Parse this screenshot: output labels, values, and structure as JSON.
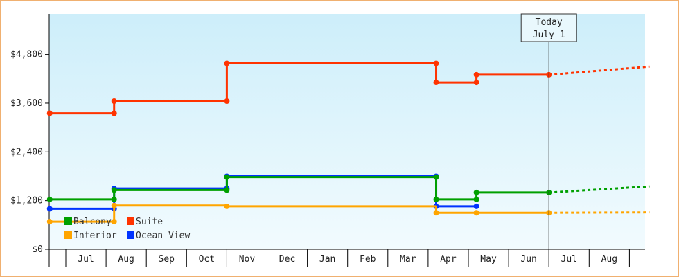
{
  "chart_data": {
    "type": "line",
    "step": true,
    "x_axis": {
      "month_labels": [
        "Jul",
        "Aug",
        "Sep",
        "Oct",
        "Nov",
        "Dec",
        "Jan",
        "Feb",
        "Mar",
        "Apr",
        "May",
        "Jun",
        "Jul",
        "Aug"
      ]
    },
    "y_axis": {
      "ylim": [
        0,
        5800
      ],
      "ticks": [
        0,
        1200,
        2400,
        3600,
        4800
      ],
      "tick_labels": [
        "$0",
        "$1,200",
        "$2,400",
        "$3,600",
        "$4,800"
      ]
    },
    "today_marker": {
      "line1": "Today",
      "line2": "July 1",
      "month_index": 12.0
    },
    "grid": false,
    "legend_position": "bottom-left",
    "series": [
      {
        "name": "Suite",
        "color": "#ff3300",
        "points": [
          [
            -0.4,
            3350
          ],
          [
            1.2,
            3350
          ],
          [
            1.2,
            3650
          ],
          [
            4.0,
            3650
          ],
          [
            4.0,
            4580
          ],
          [
            9.2,
            4580
          ],
          [
            9.2,
            4110
          ],
          [
            10.2,
            4110
          ],
          [
            10.2,
            4300
          ],
          [
            12.0,
            4300
          ]
        ],
        "markers": [
          [
            -0.4,
            3350
          ],
          [
            1.2,
            3350
          ],
          [
            1.2,
            3650
          ],
          [
            4.0,
            3650
          ],
          [
            4.0,
            4580
          ],
          [
            9.2,
            4580
          ],
          [
            9.2,
            4110
          ],
          [
            10.2,
            4110
          ],
          [
            10.2,
            4300
          ],
          [
            12.0,
            4300
          ]
        ],
        "forecast": [
          [
            12.0,
            4300
          ],
          [
            14.5,
            4500
          ]
        ]
      },
      {
        "name": "Ocean View",
        "color": "#0033ff",
        "points": [
          [
            -0.4,
            1000
          ],
          [
            1.2,
            1000
          ],
          [
            1.2,
            1500
          ],
          [
            4.0,
            1500
          ],
          [
            4.0,
            1800
          ],
          [
            9.2,
            1800
          ],
          [
            9.2,
            1060
          ],
          [
            10.2,
            1060
          ]
        ],
        "markers": [
          [
            -0.4,
            1000
          ],
          [
            1.2,
            1000
          ],
          [
            1.2,
            1500
          ],
          [
            4.0,
            1500
          ],
          [
            4.0,
            1800
          ],
          [
            9.2,
            1800
          ],
          [
            9.2,
            1060
          ],
          [
            10.2,
            1060
          ]
        ],
        "forecast": []
      },
      {
        "name": "Balcony",
        "color": "#00a000",
        "points": [
          [
            -0.4,
            1230
          ],
          [
            1.2,
            1230
          ],
          [
            1.2,
            1460
          ],
          [
            4.0,
            1460
          ],
          [
            4.0,
            1780
          ],
          [
            9.2,
            1780
          ],
          [
            9.2,
            1230
          ],
          [
            10.2,
            1230
          ],
          [
            10.2,
            1400
          ],
          [
            12.0,
            1400
          ]
        ],
        "markers": [
          [
            -0.4,
            1230
          ],
          [
            1.2,
            1230
          ],
          [
            1.2,
            1460
          ],
          [
            4.0,
            1460
          ],
          [
            4.0,
            1780
          ],
          [
            9.2,
            1780
          ],
          [
            9.2,
            1230
          ],
          [
            10.2,
            1230
          ],
          [
            10.2,
            1400
          ],
          [
            12.0,
            1400
          ]
        ],
        "forecast": [
          [
            12.0,
            1400
          ],
          [
            14.5,
            1550
          ]
        ]
      },
      {
        "name": "Interior",
        "color": "#ffa500",
        "points": [
          [
            -0.4,
            680
          ],
          [
            1.2,
            680
          ],
          [
            1.2,
            1080
          ],
          [
            4.0,
            1080
          ],
          [
            4.0,
            1060
          ],
          [
            9.2,
            1060
          ],
          [
            9.2,
            900
          ],
          [
            10.2,
            900
          ],
          [
            10.2,
            900
          ],
          [
            12.0,
            900
          ]
        ],
        "markers": [
          [
            -0.4,
            680
          ],
          [
            1.2,
            680
          ],
          [
            1.2,
            1080
          ],
          [
            4.0,
            1060
          ],
          [
            9.2,
            900
          ],
          [
            10.2,
            900
          ],
          [
            12.0,
            900
          ]
        ],
        "forecast": [
          [
            12.0,
            900
          ],
          [
            14.5,
            910
          ]
        ]
      }
    ],
    "legend": [
      {
        "label": "Balcony",
        "color": "#00a000"
      },
      {
        "label": "Suite",
        "color": "#ff3300"
      },
      {
        "label": "Interior",
        "color": "#ffa500"
      },
      {
        "label": "Ocean View",
        "color": "#0033ff"
      }
    ]
  }
}
